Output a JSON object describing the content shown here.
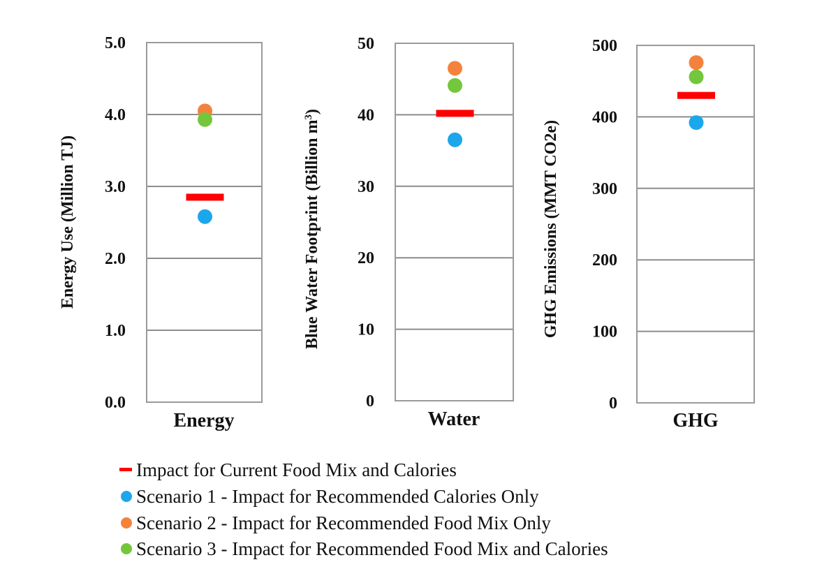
{
  "chart_data": [
    {
      "type": "scatter",
      "category": "Energy",
      "ylabel": "Energy Use (Million  TJ)",
      "ylim": [
        0,
        5
      ],
      "yticks": [
        "0.0",
        "1.0",
        "2.0",
        "3.0",
        "4.0",
        "5.0"
      ],
      "ytick_values": [
        0,
        1,
        2,
        3,
        4,
        5
      ],
      "grid": true,
      "current": 2.85,
      "scenario1": 2.58,
      "scenario2": 4.05,
      "scenario3": 3.93
    },
    {
      "type": "scatter",
      "category": "Water",
      "ylabel": "Blue Water  Footprint (Billion m",
      "ylabel_sup": "3",
      "ylabel_close": ")",
      "ylim": [
        0,
        50
      ],
      "yticks": [
        "0",
        "10",
        "20",
        "30",
        "40",
        "50"
      ],
      "ytick_values": [
        0,
        10,
        20,
        30,
        40,
        50
      ],
      "grid": true,
      "current": 40.2,
      "scenario1": 36.5,
      "scenario2": 46.5,
      "scenario3": 44.1
    },
    {
      "type": "scatter",
      "category": "GHG",
      "ylabel": "GHG Emissions  (MMT CO2e)",
      "ylim": [
        0,
        500
      ],
      "yticks": [
        "0",
        "100",
        "200",
        "300",
        "400",
        "500"
      ],
      "ytick_values": [
        0,
        100,
        200,
        300,
        400,
        500
      ],
      "grid": true,
      "current": 430,
      "scenario1": 392,
      "scenario2": 476,
      "scenario3": 456
    }
  ],
  "legend": {
    "placement": "bottom",
    "items": [
      {
        "key": "current",
        "label": "Impact for Current Food Mix and Calories",
        "marker": "dash",
        "color": "#ff0000"
      },
      {
        "key": "scenario1",
        "label": "Scenario 1 - Impact for Recommended Calories Only",
        "marker": "circle",
        "color": "#1ca7ec"
      },
      {
        "key": "scenario2",
        "label": "Scenario 2 - Impact for Recommended Food Mix Only",
        "marker": "circle",
        "color": "#f4823d"
      },
      {
        "key": "scenario3",
        "label": "Scenario 3 - Impact for Recommended Food Mix and Calories",
        "marker": "circle",
        "color": "#74c63c"
      }
    ]
  }
}
